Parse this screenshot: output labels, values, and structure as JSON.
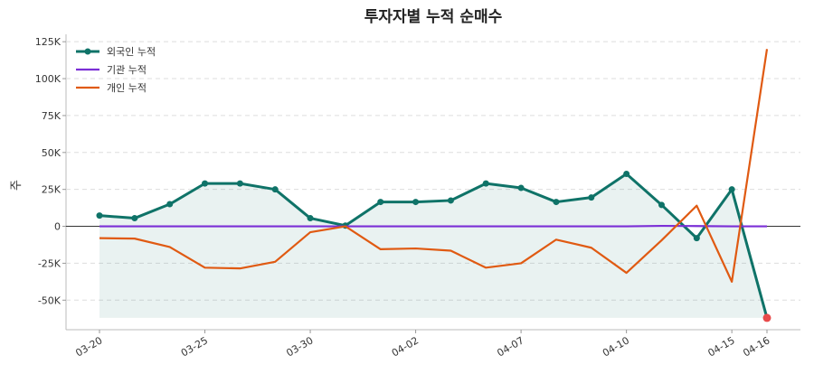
{
  "chart_data": {
    "type": "line",
    "title": "투자자별 누적 순매수",
    "y_label": "주",
    "categories": [
      "03-20",
      null,
      null,
      "03-25",
      null,
      null,
      "03-30",
      null,
      null,
      "04-02",
      null,
      null,
      "04-07",
      null,
      null,
      "04-10",
      null,
      null,
      "04-15",
      "04-16"
    ],
    "series": [
      {
        "name": "외국인 누적",
        "color": "#0f7368",
        "markers": true,
        "fill": true,
        "values": [
          7300,
          5500,
          15000,
          29000,
          29000,
          25000,
          5500,
          500,
          16500,
          16500,
          17500,
          29000,
          26000,
          16500,
          19500,
          35500,
          14500,
          -8000,
          25000,
          -62000
        ]
      },
      {
        "name": "기관 누적",
        "color": "#7b2fd6",
        "markers": false,
        "fill": false,
        "values": [
          0,
          0,
          0,
          0,
          0,
          0,
          0,
          0,
          0,
          0,
          0,
          0,
          0,
          0,
          0,
          0,
          300,
          200,
          0,
          0
        ]
      },
      {
        "name": "개인 누적",
        "color": "#e05a12",
        "markers": false,
        "fill": false,
        "values": [
          -8000,
          -8300,
          -14000,
          -28000,
          -28500,
          -24000,
          -4000,
          0,
          -15500,
          -15000,
          -16500,
          -28000,
          -25000,
          -9000,
          -14500,
          -31500,
          -9500,
          14000,
          -37500,
          120000
        ]
      }
    ],
    "highlight_color": "#e84a4a",
    "ylim": [
      -70000,
      130000
    ],
    "yticks": [
      {
        "value": -50000,
        "label": "-50K"
      },
      {
        "value": -25000,
        "label": "-25K"
      },
      0,
      {
        "value": 25000,
        "label": "25K"
      },
      {
        "value": 50000,
        "label": "50K"
      },
      {
        "value": 75000,
        "label": "75K"
      },
      {
        "value": 100000,
        "label": "100K"
      },
      {
        "value": 125000,
        "label": "125K"
      }
    ],
    "grid": true,
    "legend": "upper-left"
  }
}
